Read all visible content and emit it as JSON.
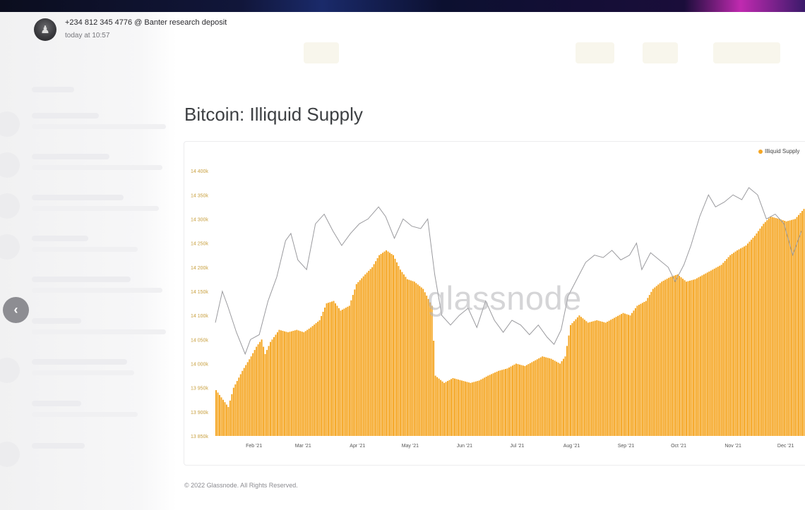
{
  "header": {
    "sender": "+234 812 345 4776 @ Banter research deposit",
    "time": "today at 10:57"
  },
  "colors": {
    "supply": "#f5a623",
    "price_line": "#9a9a9e",
    "axis_text": "#c8a040"
  },
  "chart_data": {
    "type": "bar",
    "title": "Bitcoin: Illiquid Supply",
    "legend": [
      {
        "name": "Illiquid Supply",
        "color": "#f5a623"
      }
    ],
    "legend_position": "top-right",
    "watermark": "glassnode",
    "footer": "© 2022 Glassnode. All Rights Reserved.",
    "y_ticks": [
      "13 850k",
      "13 900k",
      "13 950k",
      "14 000k",
      "14 050k",
      "14 100k",
      "14 150k",
      "14 200k",
      "14 250k",
      "14 300k",
      "14 350k",
      "14 400k"
    ],
    "ylim": [
      13850,
      14425
    ],
    "x_ticks": [
      "Feb '21",
      "Mar '21",
      "Apr '21",
      "May '21",
      "Jun '21",
      "Jul '21",
      "Aug '21",
      "Sep '21",
      "Oct '21",
      "Nov '21",
      "Dec '21"
    ],
    "date_range": [
      "2021-01-10",
      "2021-12-12"
    ],
    "series": [
      {
        "name": "Illiquid Supply",
        "kind": "bar",
        "points": [
          [
            "2021-01-10",
            13945
          ],
          [
            "2021-01-14",
            13925
          ],
          [
            "2021-01-17",
            13910
          ],
          [
            "2021-01-20",
            13950
          ],
          [
            "2021-01-25",
            13985
          ],
          [
            "2021-01-30",
            14015
          ],
          [
            "2021-02-02",
            14035
          ],
          [
            "2021-02-05",
            14050
          ],
          [
            "2021-02-07",
            14020
          ],
          [
            "2021-02-10",
            14045
          ],
          [
            "2021-02-15",
            14070
          ],
          [
            "2021-02-20",
            14065
          ],
          [
            "2021-02-25",
            14070
          ],
          [
            "2021-03-01",
            14065
          ],
          [
            "2021-03-05",
            14075
          ],
          [
            "2021-03-10",
            14090
          ],
          [
            "2021-03-14",
            14125
          ],
          [
            "2021-03-18",
            14130
          ],
          [
            "2021-03-22",
            14110
          ],
          [
            "2021-03-27",
            14120
          ],
          [
            "2021-03-31",
            14165
          ],
          [
            "2021-04-05",
            14185
          ],
          [
            "2021-04-09",
            14200
          ],
          [
            "2021-04-13",
            14225
          ],
          [
            "2021-04-17",
            14235
          ],
          [
            "2021-04-21",
            14225
          ],
          [
            "2021-04-25",
            14195
          ],
          [
            "2021-04-29",
            14175
          ],
          [
            "2021-05-03",
            14170
          ],
          [
            "2021-05-08",
            14155
          ],
          [
            "2021-05-13",
            14120
          ],
          [
            "2021-05-15",
            13975
          ],
          [
            "2021-05-20",
            13960
          ],
          [
            "2021-05-25",
            13970
          ],
          [
            "2021-05-30",
            13965
          ],
          [
            "2021-06-04",
            13960
          ],
          [
            "2021-06-09",
            13965
          ],
          [
            "2021-06-14",
            13975
          ],
          [
            "2021-06-20",
            13985
          ],
          [
            "2021-06-25",
            13990
          ],
          [
            "2021-06-30",
            14000
          ],
          [
            "2021-07-05",
            13995
          ],
          [
            "2021-07-10",
            14005
          ],
          [
            "2021-07-15",
            14015
          ],
          [
            "2021-07-20",
            14010
          ],
          [
            "2021-07-25",
            14000
          ],
          [
            "2021-07-28",
            14015
          ],
          [
            "2021-07-31",
            14080
          ],
          [
            "2021-08-05",
            14100
          ],
          [
            "2021-08-10",
            14085
          ],
          [
            "2021-08-15",
            14090
          ],
          [
            "2021-08-20",
            14085
          ],
          [
            "2021-08-25",
            14095
          ],
          [
            "2021-08-30",
            14105
          ],
          [
            "2021-09-03",
            14100
          ],
          [
            "2021-09-07",
            14120
          ],
          [
            "2021-09-12",
            14130
          ],
          [
            "2021-09-16",
            14155
          ],
          [
            "2021-09-21",
            14170
          ],
          [
            "2021-09-26",
            14180
          ],
          [
            "2021-09-30",
            14185
          ],
          [
            "2021-10-05",
            14170
          ],
          [
            "2021-10-10",
            14175
          ],
          [
            "2021-10-15",
            14185
          ],
          [
            "2021-10-20",
            14195
          ],
          [
            "2021-10-25",
            14205
          ],
          [
            "2021-10-30",
            14225
          ],
          [
            "2021-11-03",
            14235
          ],
          [
            "2021-11-08",
            14245
          ],
          [
            "2021-11-13",
            14265
          ],
          [
            "2021-11-18",
            14290
          ],
          [
            "2021-11-22",
            14305
          ],
          [
            "2021-11-27",
            14300
          ],
          [
            "2021-12-01",
            14295
          ],
          [
            "2021-12-06",
            14300
          ],
          [
            "2021-12-12",
            14325
          ]
        ]
      },
      {
        "name": "",
        "kind": "line",
        "points": [
          [
            "2021-01-10",
            14085
          ],
          [
            "2021-01-14",
            14150
          ],
          [
            "2021-01-17",
            14120
          ],
          [
            "2021-01-22",
            14065
          ],
          [
            "2021-01-27",
            14020
          ],
          [
            "2021-01-30",
            14050
          ],
          [
            "2021-02-04",
            14060
          ],
          [
            "2021-02-09",
            14130
          ],
          [
            "2021-02-14",
            14180
          ],
          [
            "2021-02-19",
            14255
          ],
          [
            "2021-02-22",
            14270
          ],
          [
            "2021-02-26",
            14215
          ],
          [
            "2021-03-03",
            14195
          ],
          [
            "2021-03-08",
            14290
          ],
          [
            "2021-03-13",
            14310
          ],
          [
            "2021-03-18",
            14275
          ],
          [
            "2021-03-23",
            14245
          ],
          [
            "2021-03-28",
            14270
          ],
          [
            "2021-04-02",
            14290
          ],
          [
            "2021-04-07",
            14300
          ],
          [
            "2021-04-13",
            14325
          ],
          [
            "2021-04-17",
            14305
          ],
          [
            "2021-04-22",
            14260
          ],
          [
            "2021-04-27",
            14300
          ],
          [
            "2021-05-02",
            14285
          ],
          [
            "2021-05-07",
            14280
          ],
          [
            "2021-05-11",
            14300
          ],
          [
            "2021-05-15",
            14185
          ],
          [
            "2021-05-19",
            14100
          ],
          [
            "2021-05-24",
            14080
          ],
          [
            "2021-05-29",
            14100
          ],
          [
            "2021-06-03",
            14115
          ],
          [
            "2021-06-08",
            14075
          ],
          [
            "2021-06-13",
            14130
          ],
          [
            "2021-06-18",
            14090
          ],
          [
            "2021-06-23",
            14065
          ],
          [
            "2021-06-28",
            14090
          ],
          [
            "2021-07-03",
            14080
          ],
          [
            "2021-07-08",
            14060
          ],
          [
            "2021-07-13",
            14080
          ],
          [
            "2021-07-18",
            14055
          ],
          [
            "2021-07-22",
            14040
          ],
          [
            "2021-07-26",
            14070
          ],
          [
            "2021-07-30",
            14140
          ],
          [
            "2021-08-04",
            14175
          ],
          [
            "2021-08-09",
            14210
          ],
          [
            "2021-08-14",
            14225
          ],
          [
            "2021-08-19",
            14220
          ],
          [
            "2021-08-24",
            14235
          ],
          [
            "2021-08-29",
            14215
          ],
          [
            "2021-09-03",
            14225
          ],
          [
            "2021-09-07",
            14250
          ],
          [
            "2021-09-10",
            14195
          ],
          [
            "2021-09-15",
            14230
          ],
          [
            "2021-09-20",
            14215
          ],
          [
            "2021-09-25",
            14200
          ],
          [
            "2021-09-29",
            14170
          ],
          [
            "2021-10-04",
            14205
          ],
          [
            "2021-10-08",
            14245
          ],
          [
            "2021-10-13",
            14305
          ],
          [
            "2021-10-18",
            14350
          ],
          [
            "2021-10-22",
            14325
          ],
          [
            "2021-10-27",
            14335
          ],
          [
            "2021-11-01",
            14350
          ],
          [
            "2021-11-06",
            14340
          ],
          [
            "2021-11-10",
            14365
          ],
          [
            "2021-11-15",
            14350
          ],
          [
            "2021-11-20",
            14300
          ],
          [
            "2021-11-25",
            14310
          ],
          [
            "2021-11-30",
            14290
          ],
          [
            "2021-12-05",
            14225
          ],
          [
            "2021-12-10",
            14275
          ]
        ]
      }
    ]
  }
}
